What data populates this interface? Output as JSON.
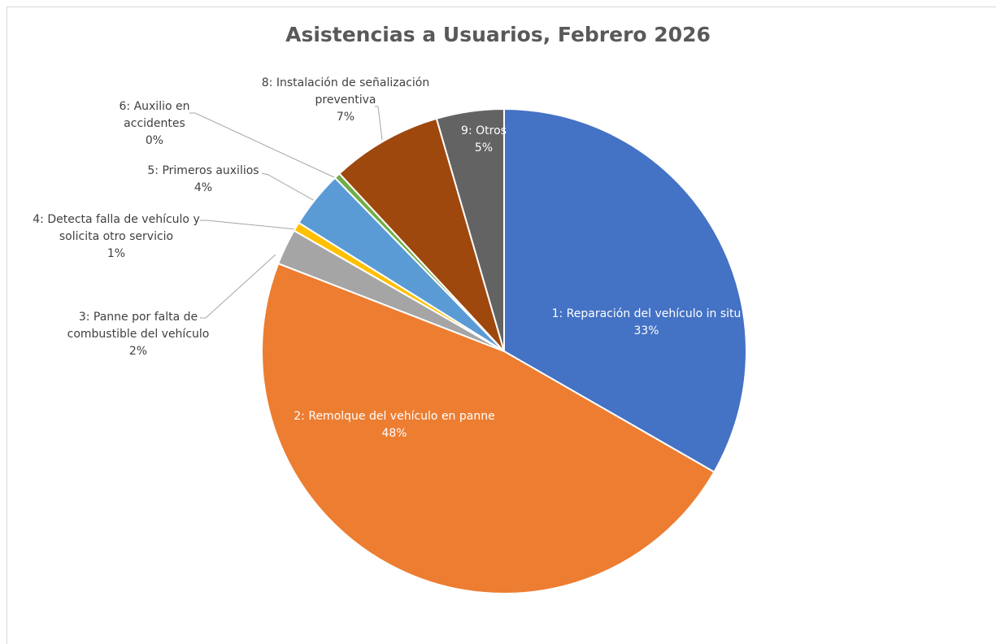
{
  "chart_data": {
    "type": "pie",
    "title": "Asistencias a Usuarios, Febrero 2026",
    "categories": [
      "1: Reparación del vehículo in situ",
      "2: Remolque del vehículo en panne",
      "3: Panne por falta de combustible del vehículo",
      "4: Detecta falla de vehículo y solicita otro servicio",
      "5: Primeros auxilios",
      "6: Auxilio en accidentes",
      "8: Instalación de señalización preventiva",
      "9: Otros"
    ],
    "values": [
      33.3,
      47.6,
      2.4,
      0.6,
      3.8,
      0.4,
      7.4,
      4.5
    ],
    "value_labels": [
      "33%",
      "48%",
      "2%",
      "1%",
      "4%",
      "0%",
      "7%",
      "5%"
    ],
    "colors": [
      "#4472c4",
      "#ed7d31",
      "#a5a5a5",
      "#ffc000",
      "#5b9bd5",
      "#70ad47",
      "#9e480e",
      "#636363"
    ]
  }
}
